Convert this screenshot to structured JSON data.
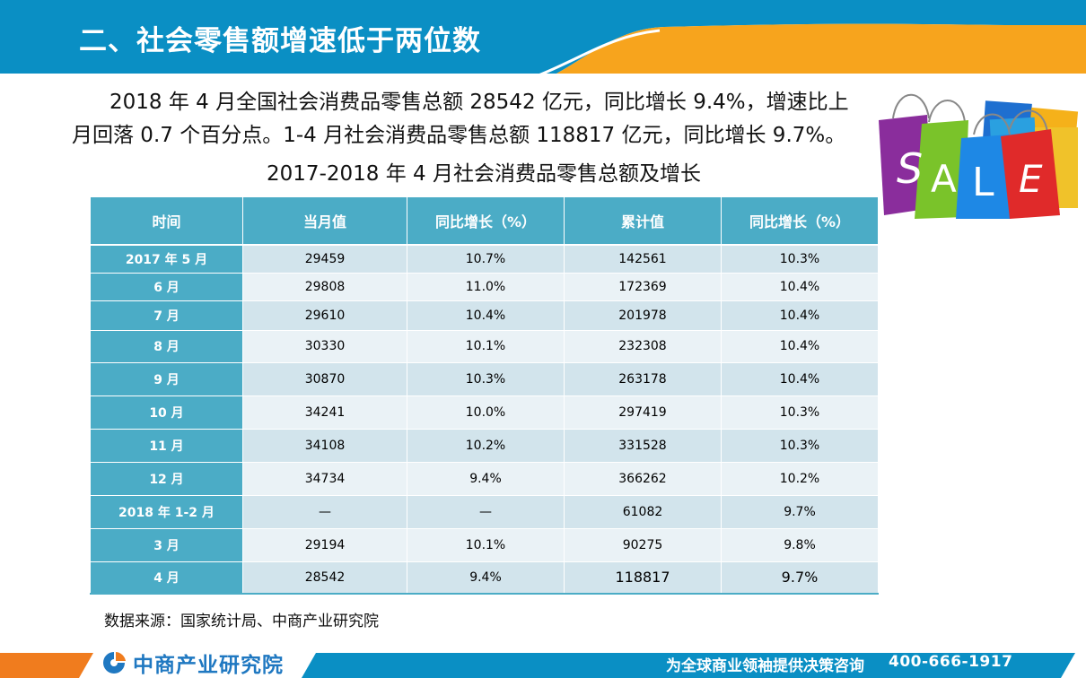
{
  "header": {
    "title": "二、社会零售额增速低于两位数"
  },
  "paragraph": {
    "line1": "2018 年 4 月全国社会消费品零售总额 28542 亿元，同比增长 9.4%，增速比上",
    "line2": "月回落 0.7 个百分点。1-4 月社会消费品零售总额 118817 亿元，同比增长 9.7%。"
  },
  "table_title": "2017-2018 年 4 月社会消费品零售总额及增长",
  "sale_image": {
    "letters": [
      "S",
      "A",
      "L",
      "E"
    ]
  },
  "table": {
    "headers": [
      "时间",
      "当月值",
      "同比增长（%）",
      "累计值",
      "同比增长（%）"
    ],
    "rows": [
      [
        "2017 年 5 月",
        "29459",
        "10.7%",
        "142561",
        "10.3%"
      ],
      [
        "6 月",
        "29808",
        "11.0%",
        "172369",
        "10.4%"
      ],
      [
        "7 月",
        "29610",
        "10.4%",
        "201978",
        "10.4%"
      ],
      [
        "8 月",
        "30330",
        "10.1%",
        "232308",
        "10.4%"
      ],
      [
        "9 月",
        "30870",
        "10.3%",
        "263178",
        "10.4%"
      ],
      [
        "10 月",
        "34241",
        "10.0%",
        "297419",
        "10.3%"
      ],
      [
        "11 月",
        "34108",
        "10.2%",
        "331528",
        "10.3%"
      ],
      [
        "12 月",
        "34734",
        "9.4%",
        "366262",
        "10.2%"
      ],
      [
        "2018 年 1-2 月",
        "—",
        "—",
        "61082",
        "9.7%"
      ],
      [
        "3 月",
        "29194",
        "10.1%",
        "90275",
        "9.8%"
      ],
      [
        "4 月",
        "28542",
        "9.4%",
        "118817",
        "9.7%"
      ]
    ]
  },
  "source": "数据来源：国家统计局、中商产业研究院",
  "footer": {
    "logo_text": "中商产业研究院",
    "slogan": "为全球商业领袖提供决策咨询",
    "phone": "400-666-1917"
  },
  "colors": {
    "header_blue": "#0a8fc4",
    "accent_orange": "#f7a41d",
    "table_blue": "#4bacc6"
  }
}
